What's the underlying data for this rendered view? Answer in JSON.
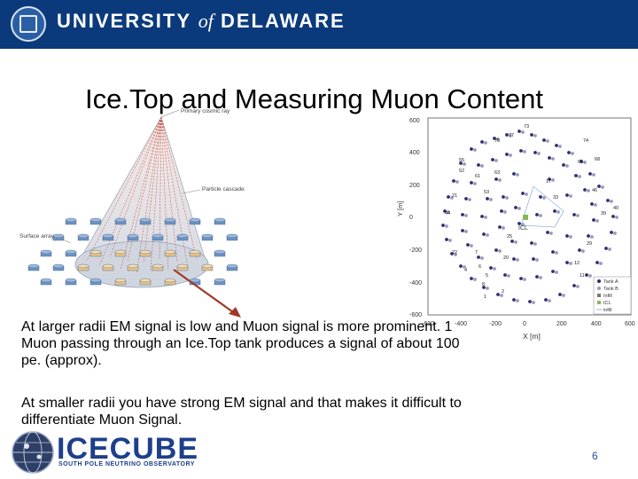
{
  "header": {
    "university_main": "UNIVERSITY",
    "university_of": "of",
    "university_place": "DELAWARE"
  },
  "slide": {
    "title": "Ice.Top and Measuring Muon Content",
    "paragraph1": "At larger radii EM signal is low and Muon signal is more prominent. 1 Muon passing through an Ice.Top tank produces a signal of about 100 pe. (approx).",
    "paragraph2": "At smaller radii you have strong EM signal and that makes it difficult to differentiate Muon Signal.",
    "number": "6"
  },
  "shower_figure": {
    "label_primary": "Primary cosmic ray",
    "label_cascade": "Particle cascade",
    "label_surface": "Surface array"
  },
  "array_plot": {
    "x_axis_label": "X [m]",
    "y_axis_label": "Y [m]",
    "x_ticks": [
      "-600",
      "-400",
      "-200",
      "0",
      "200",
      "400",
      "600"
    ],
    "y_ticks": [
      "600",
      "400",
      "200",
      "0",
      "-200",
      "-400",
      "-600"
    ],
    "legend": [
      "Tank A",
      "Tank B",
      "Infill",
      "ICL",
      "infill"
    ],
    "icl_label": "ICL",
    "station_labels": [
      "73",
      "77",
      "76",
      "74",
      "68",
      "55",
      "65",
      "52",
      "61",
      "53",
      "46",
      "40",
      "39",
      "25",
      "29",
      "12",
      "20",
      "11",
      "1",
      "2",
      "6",
      "5",
      "8",
      "4",
      "7",
      "17",
      "33",
      "22",
      "63",
      "21",
      "44"
    ],
    "colors": {
      "tank_a": "#2d2d6e",
      "tank_b": "#9a9aba",
      "infill": "#7a7a7a",
      "icl": "#8db45c",
      "infill_line": "#8fb8e0"
    }
  },
  "footer": {
    "logo_main": "ICECUBE",
    "logo_sub": "SOUTH POLE NEUTRINO OBSERVATORY",
    "colors": {
      "logo": "#1d3f8c"
    }
  }
}
